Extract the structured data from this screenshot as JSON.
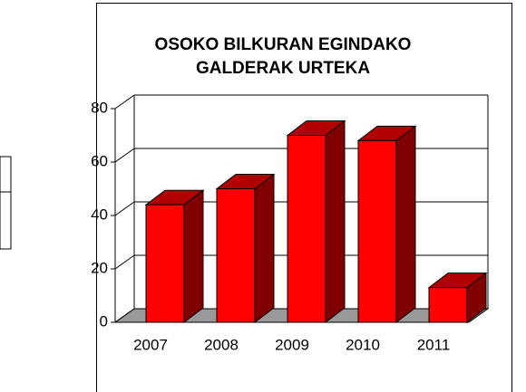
{
  "chart_data": {
    "type": "bar3d",
    "title": [
      "OSOKO BILKURAN EGINDAKO",
      "GALDERAK URTEKA"
    ],
    "categories": [
      "2007",
      "2008",
      "2009",
      "2010",
      "2011"
    ],
    "values": [
      44,
      50,
      70,
      68,
      13
    ],
    "color": "#ff0000",
    "ylim": [
      0,
      80
    ],
    "yticks": [
      0,
      20,
      40,
      60,
      80
    ],
    "grid": true
  }
}
